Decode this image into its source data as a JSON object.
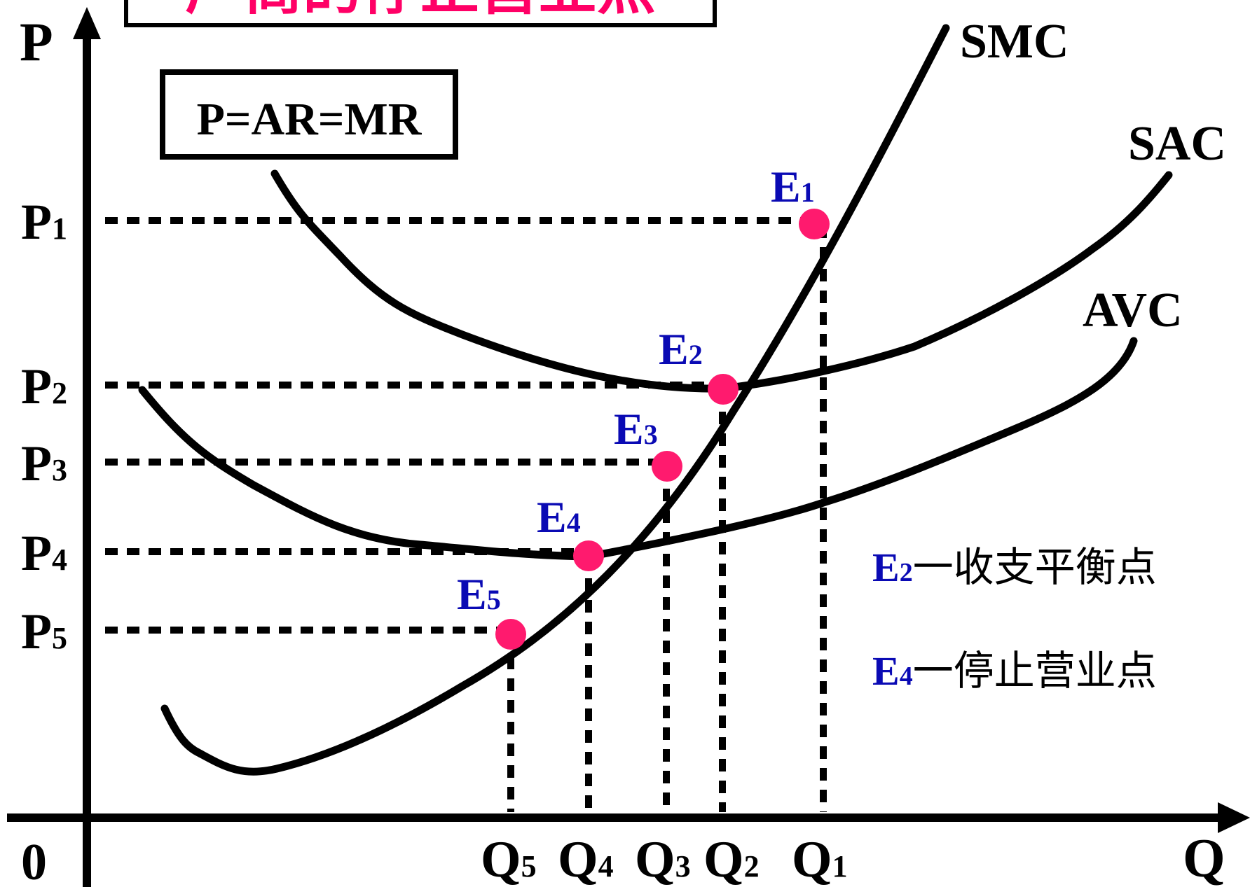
{
  "title_partial": "厂商的停止营业点",
  "box_label": "P=AR=MR",
  "axes": {
    "y": "P",
    "x": "Q",
    "origin": "0"
  },
  "curves": {
    "smc": "SMC",
    "sac": "SAC",
    "avc": "AVC"
  },
  "prices": [
    {
      "base": "P",
      "sub": "1"
    },
    {
      "base": "P",
      "sub": "2"
    },
    {
      "base": "P",
      "sub": "3"
    },
    {
      "base": "P",
      "sub": "4"
    },
    {
      "base": "P",
      "sub": "5"
    }
  ],
  "quantities": [
    {
      "base": "Q",
      "sub": "5"
    },
    {
      "base": "Q",
      "sub": "4"
    },
    {
      "base": "Q",
      "sub": "3"
    },
    {
      "base": "Q",
      "sub": "2"
    },
    {
      "base": "Q",
      "sub": "1"
    }
  ],
  "points": [
    {
      "base": "E",
      "sub": "1"
    },
    {
      "base": "E",
      "sub": "2"
    },
    {
      "base": "E",
      "sub": "3"
    },
    {
      "base": "E",
      "sub": "4"
    },
    {
      "base": "E",
      "sub": "5"
    }
  ],
  "legend": [
    {
      "base": "E",
      "sub": "2",
      "text": "一收支平衡点"
    },
    {
      "base": "E",
      "sub": "4",
      "text": "一停止营业点"
    }
  ],
  "colors": {
    "title": "#ff0066",
    "point": "#ff1a6e",
    "point_label": "#0a0ab4",
    "line": "#000000"
  }
}
